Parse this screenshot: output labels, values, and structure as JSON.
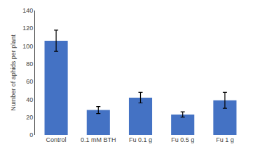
{
  "chart_data": {
    "type": "bar",
    "categories": [
      "Control",
      "0.1 mM BTH",
      "Fu 0.1 g",
      "Fu 0.5 g",
      "Fu 1 g"
    ],
    "values": [
      106,
      28,
      42,
      23,
      39
    ],
    "errors": [
      12,
      4,
      6,
      3,
      9
    ],
    "color": "#4472C4",
    "ylabel": "Number of aphids per plant",
    "ylim": [
      0,
      140
    ],
    "yticks": [
      0,
      20,
      40,
      60,
      80,
      100,
      120,
      140
    ],
    "grid": false
  }
}
